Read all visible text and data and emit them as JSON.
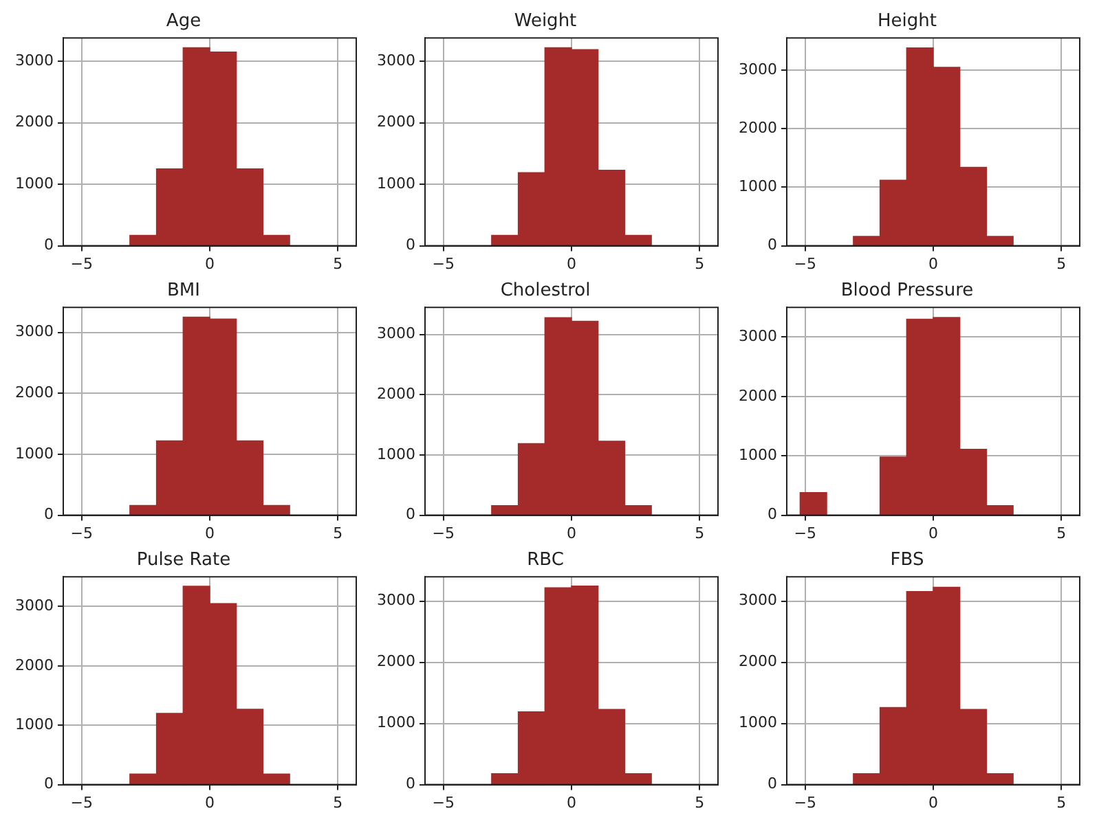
{
  "chart_data": [
    {
      "type": "histogram",
      "title": "Age",
      "bins": [
        -5.2,
        -4.16,
        -3.12,
        -2.08,
        -1.04,
        0,
        1.04,
        2.08,
        3.12,
        4.16,
        5.2
      ],
      "values": [
        0,
        0,
        170,
        1250,
        3220,
        3150,
        1250,
        170,
        0,
        0
      ],
      "color": "#a52a2a",
      "xlim": [
        -5.72,
        5.72
      ],
      "xticks": [
        -5,
        0,
        5
      ],
      "ylim": [
        0,
        3380
      ],
      "yticks": [
        0,
        1000,
        2000,
        3000
      ],
      "grid": true
    },
    {
      "type": "histogram",
      "title": "Weight",
      "bins": [
        -5.2,
        -4.16,
        -3.12,
        -2.08,
        -1.04,
        0,
        1.04,
        2.08,
        3.12,
        4.16,
        5.2
      ],
      "values": [
        0,
        0,
        170,
        1190,
        3220,
        3190,
        1230,
        170,
        0,
        0
      ],
      "color": "#a52a2a",
      "xlim": [
        -5.72,
        5.72
      ],
      "xticks": [
        -5,
        0,
        5
      ],
      "ylim": [
        0,
        3380
      ],
      "yticks": [
        0,
        1000,
        2000,
        3000
      ],
      "grid": true
    },
    {
      "type": "histogram",
      "title": "Height",
      "bins": [
        -5.2,
        -4.16,
        -3.12,
        -2.08,
        -1.04,
        0,
        1.04,
        2.08,
        3.12,
        4.16,
        5.2
      ],
      "values": [
        0,
        0,
        160,
        1120,
        3380,
        3050,
        1340,
        160,
        0,
        0
      ],
      "color": "#a52a2a",
      "xlim": [
        -5.72,
        5.72
      ],
      "xticks": [
        -5,
        0,
        5
      ],
      "ylim": [
        0,
        3550
      ],
      "yticks": [
        0,
        1000,
        2000,
        3000
      ],
      "grid": true
    },
    {
      "type": "histogram",
      "title": "BMI",
      "bins": [
        -5.2,
        -4.16,
        -3.12,
        -2.08,
        -1.04,
        0,
        1.04,
        2.08,
        3.12,
        4.16,
        5.2
      ],
      "values": [
        0,
        0,
        160,
        1220,
        3250,
        3220,
        1220,
        160,
        0,
        0
      ],
      "color": "#a52a2a",
      "xlim": [
        -5.72,
        5.72
      ],
      "xticks": [
        -5,
        0,
        5
      ],
      "ylim": [
        0,
        3410
      ],
      "yticks": [
        0,
        1000,
        2000,
        3000
      ],
      "grid": true
    },
    {
      "type": "histogram",
      "title": "Cholestrol",
      "bins": [
        -5.2,
        -4.16,
        -3.12,
        -2.08,
        -1.04,
        0,
        1.04,
        2.08,
        3.12,
        4.16,
        5.2
      ],
      "values": [
        0,
        0,
        160,
        1190,
        3280,
        3220,
        1230,
        160,
        0,
        0
      ],
      "color": "#a52a2a",
      "xlim": [
        -5.72,
        5.72
      ],
      "xticks": [
        -5,
        0,
        5
      ],
      "ylim": [
        0,
        3450
      ],
      "yticks": [
        0,
        1000,
        2000,
        3000
      ],
      "grid": true
    },
    {
      "type": "histogram",
      "title": "Blood Pressure",
      "bins": [
        -5.2,
        -4.16,
        -3.12,
        -2.08,
        -1.04,
        0,
        1.04,
        2.08,
        3.12,
        4.16,
        5.2
      ],
      "values": [
        380,
        0,
        0,
        980,
        3300,
        3330,
        1110,
        160,
        0,
        0
      ],
      "color": "#a52a2a",
      "xlim": [
        -5.72,
        5.72
      ],
      "xticks": [
        -5,
        0,
        5
      ],
      "ylim": [
        0,
        3500
      ],
      "yticks": [
        0,
        1000,
        2000,
        3000
      ],
      "grid": true
    },
    {
      "type": "histogram",
      "title": "Pulse Rate",
      "bins": [
        -5.2,
        -4.16,
        -3.12,
        -2.08,
        -1.04,
        0,
        1.04,
        2.08,
        3.12,
        4.16,
        5.2
      ],
      "values": [
        0,
        0,
        180,
        1200,
        3340,
        3050,
        1270,
        180,
        0,
        0
      ],
      "color": "#a52a2a",
      "xlim": [
        -5.72,
        5.72
      ],
      "xticks": [
        -5,
        0,
        5
      ],
      "ylim": [
        0,
        3500
      ],
      "yticks": [
        0,
        1000,
        2000,
        3000
      ],
      "grid": true
    },
    {
      "type": "histogram",
      "title": "RBC",
      "bins": [
        -5.2,
        -4.16,
        -3.12,
        -2.08,
        -1.04,
        0,
        1.04,
        2.08,
        3.12,
        4.16,
        5.2
      ],
      "values": [
        0,
        0,
        180,
        1190,
        3220,
        3250,
        1230,
        180,
        0,
        0
      ],
      "color": "#a52a2a",
      "xlim": [
        -5.72,
        5.72
      ],
      "xticks": [
        -5,
        0,
        5
      ],
      "ylim": [
        0,
        3400
      ],
      "yticks": [
        0,
        1000,
        2000,
        3000
      ],
      "grid": true
    },
    {
      "type": "histogram",
      "title": "FBS",
      "bins": [
        -5.2,
        -4.16,
        -3.12,
        -2.08,
        -1.04,
        0,
        1.04,
        2.08,
        3.12,
        4.16,
        5.2
      ],
      "values": [
        0,
        0,
        180,
        1260,
        3160,
        3230,
        1230,
        180,
        0,
        0
      ],
      "color": "#a52a2a",
      "xlim": [
        -5.72,
        5.72
      ],
      "xticks": [
        -5,
        0,
        5
      ],
      "ylim": [
        0,
        3400
      ],
      "yticks": [
        0,
        1000,
        2000,
        3000
      ],
      "grid": true
    }
  ]
}
